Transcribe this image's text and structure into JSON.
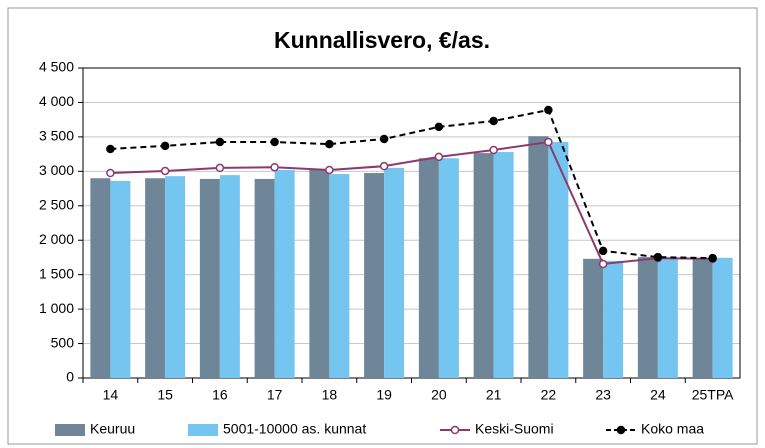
{
  "chart_data": {
    "type": "bar",
    "title": "Kunnallisvero, €/as.",
    "categories": [
      "14",
      "15",
      "16",
      "17",
      "18",
      "19",
      "20",
      "21",
      "22",
      "23",
      "24",
      "25TPA"
    ],
    "series": [
      {
        "name": "Keuruu",
        "type": "bar",
        "color": "#6f8699",
        "values": [
          2900,
          2900,
          2890,
          2890,
          3020,
          2975,
          3190,
          3265,
          3510,
          1730,
          1755,
          1740
        ]
      },
      {
        "name": "5001-10000 as. kunnat",
        "type": "bar",
        "color": "#74c5f0",
        "values": [
          2860,
          2930,
          2945,
          3020,
          2960,
          3050,
          3190,
          3280,
          3425,
          1700,
          1740,
          1745
        ]
      },
      {
        "name": "Keski-Suomi",
        "type": "line",
        "color": "#8b3a6e",
        "marker_fill": "#ffffff",
        "dashed": false,
        "values": [
          2975,
          3005,
          3050,
          3060,
          3020,
          3075,
          3210,
          3310,
          3425,
          1655,
          1740,
          1730
        ]
      },
      {
        "name": "Koko maa",
        "type": "line",
        "color": "#000000",
        "marker_fill": "#000000",
        "dashed": true,
        "values": [
          3325,
          3370,
          3425,
          3425,
          3395,
          3470,
          3645,
          3730,
          3890,
          1845,
          1755,
          1740
        ]
      }
    ],
    "ylim": [
      0,
      4500
    ],
    "yticks": [
      0,
      500,
      {
        "value": 1000,
        "label": "1 000"
      },
      {
        "value": 1500,
        "label": "1 500"
      },
      {
        "value": 2000,
        "label": "2 000"
      },
      {
        "value": 2500,
        "label": "2 500"
      },
      {
        "value": 3000,
        "label": "3 000"
      },
      {
        "value": 3500,
        "label": "3 500"
      },
      {
        "value": 4000,
        "label": "4 000"
      },
      {
        "value": 4500,
        "label": "4 500"
      }
    ],
    "grid": true,
    "legend": "bottom"
  }
}
